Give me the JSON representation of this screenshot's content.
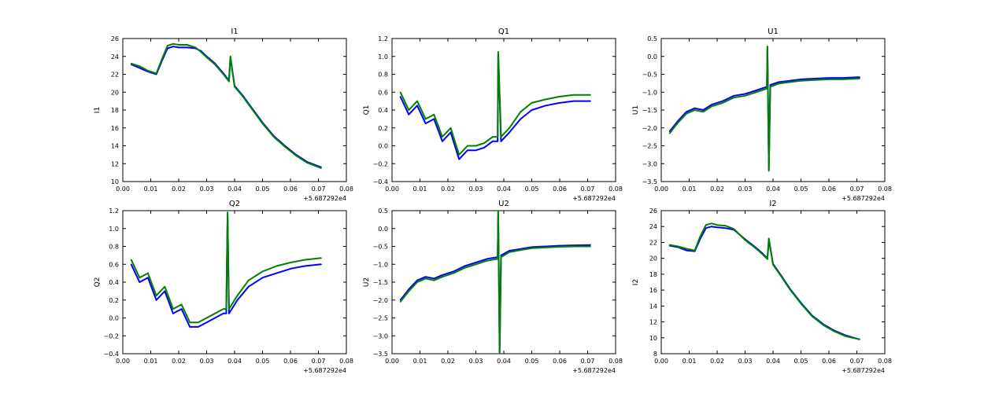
{
  "colors": {
    "series_blue": "#0000ff",
    "series_green": "#008000",
    "axis": "#000000",
    "background": "#ffffff"
  },
  "chart_data": [
    {
      "type": "line",
      "title": "I1",
      "xlabel": "",
      "ylabel": "I1",
      "xlim": [
        0.0,
        0.08
      ],
      "ylim": [
        10,
        26
      ],
      "xticks": [
        "0.00",
        "0.01",
        "0.02",
        "0.03",
        "0.04",
        "0.05",
        "0.06",
        "0.07",
        "0.08"
      ],
      "yticks": [
        "10",
        "12",
        "14",
        "16",
        "18",
        "20",
        "22",
        "24",
        "26"
      ],
      "offset_text": "+5.687292e4",
      "series": [
        {
          "name": "blue",
          "color": "#0000ff",
          "x": [
            0.003,
            0.006,
            0.009,
            0.012,
            0.014,
            0.016,
            0.018,
            0.02,
            0.023,
            0.026,
            0.028,
            0.03,
            0.033,
            0.036,
            0.038,
            0.0385,
            0.04,
            0.043,
            0.046,
            0.05,
            0.054,
            0.058,
            0.062,
            0.066,
            0.071
          ],
          "y": [
            23.1,
            22.7,
            22.3,
            22.0,
            23.5,
            24.9,
            25.1,
            25.0,
            25.0,
            24.9,
            24.6,
            24.0,
            23.2,
            22.1,
            21.3,
            23.9,
            20.7,
            19.6,
            18.3,
            16.6,
            15.1,
            14.0,
            13.0,
            12.2,
            11.6
          ]
        },
        {
          "name": "green",
          "color": "#008000",
          "x": [
            0.003,
            0.006,
            0.009,
            0.012,
            0.014,
            0.016,
            0.018,
            0.02,
            0.023,
            0.026,
            0.028,
            0.03,
            0.033,
            0.036,
            0.038,
            0.0385,
            0.04,
            0.043,
            0.046,
            0.05,
            0.054,
            0.058,
            0.062,
            0.066,
            0.071
          ],
          "y": [
            23.2,
            22.9,
            22.4,
            22.1,
            23.7,
            25.2,
            25.4,
            25.3,
            25.3,
            25.0,
            24.5,
            23.9,
            23.1,
            22.0,
            21.2,
            24.0,
            20.6,
            19.5,
            18.2,
            16.5,
            15.0,
            13.9,
            12.9,
            12.1,
            11.5
          ]
        }
      ]
    },
    {
      "type": "line",
      "title": "Q1",
      "xlabel": "",
      "ylabel": "Q1",
      "xlim": [
        0.0,
        0.08
      ],
      "ylim": [
        -0.4,
        1.2
      ],
      "xticks": [
        "0.00",
        "0.01",
        "0.02",
        "0.03",
        "0.04",
        "0.05",
        "0.06",
        "0.07",
        "0.08"
      ],
      "yticks": [
        "−0.4",
        "−0.2",
        "0.0",
        "0.2",
        "0.4",
        "0.6",
        "0.8",
        "1.0",
        "1.2"
      ],
      "offset_text": "+5.687292e4",
      "series": [
        {
          "name": "blue",
          "color": "#0000ff",
          "x": [
            0.003,
            0.006,
            0.009,
            0.012,
            0.015,
            0.018,
            0.021,
            0.024,
            0.027,
            0.03,
            0.033,
            0.036,
            0.0378,
            0.038,
            0.039,
            0.042,
            0.046,
            0.05,
            0.055,
            0.06,
            0.065,
            0.071
          ],
          "y": [
            0.55,
            0.35,
            0.45,
            0.25,
            0.3,
            0.05,
            0.15,
            -0.15,
            -0.05,
            -0.05,
            -0.02,
            0.05,
            0.05,
            1.02,
            0.05,
            0.15,
            0.3,
            0.4,
            0.45,
            0.48,
            0.5,
            0.5
          ]
        },
        {
          "name": "green",
          "color": "#008000",
          "x": [
            0.003,
            0.006,
            0.009,
            0.012,
            0.015,
            0.018,
            0.021,
            0.024,
            0.027,
            0.03,
            0.033,
            0.036,
            0.0378,
            0.038,
            0.039,
            0.042,
            0.046,
            0.05,
            0.055,
            0.06,
            0.065,
            0.071
          ],
          "y": [
            0.6,
            0.4,
            0.5,
            0.3,
            0.35,
            0.1,
            0.2,
            -0.1,
            0.0,
            0.0,
            0.03,
            0.1,
            0.1,
            1.05,
            0.1,
            0.2,
            0.38,
            0.48,
            0.52,
            0.55,
            0.57,
            0.57
          ]
        }
      ]
    },
    {
      "type": "line",
      "title": "U1",
      "xlabel": "",
      "ylabel": "U1",
      "xlim": [
        0.0,
        0.08
      ],
      "ylim": [
        -3.5,
        0.5
      ],
      "xticks": [
        "0.00",
        "0.01",
        "0.02",
        "0.03",
        "0.04",
        "0.05",
        "0.06",
        "0.07",
        "0.08"
      ],
      "yticks": [
        "−3.5",
        "−3.0",
        "−2.5",
        "−2.0",
        "−1.5",
        "−1.0",
        "−0.5",
        "0.0",
        "0.5"
      ],
      "offset_text": "+5.687292e4",
      "series": [
        {
          "name": "blue",
          "color": "#0000ff",
          "x": [
            0.003,
            0.006,
            0.009,
            0.012,
            0.015,
            0.018,
            0.022,
            0.026,
            0.03,
            0.034,
            0.0378,
            0.038,
            0.0385,
            0.039,
            0.042,
            0.046,
            0.05,
            0.055,
            0.06,
            0.065,
            0.071
          ],
          "y": [
            -2.1,
            -1.8,
            -1.55,
            -1.45,
            -1.5,
            -1.35,
            -1.25,
            -1.1,
            -1.05,
            -0.95,
            -0.85,
            0.25,
            -3.15,
            -0.8,
            -0.72,
            -0.68,
            -0.64,
            -0.62,
            -0.6,
            -0.6,
            -0.58
          ]
        },
        {
          "name": "green",
          "color": "#008000",
          "x": [
            0.003,
            0.006,
            0.009,
            0.012,
            0.015,
            0.018,
            0.022,
            0.026,
            0.03,
            0.034,
            0.0378,
            0.038,
            0.0385,
            0.039,
            0.042,
            0.046,
            0.05,
            0.055,
            0.06,
            0.065,
            0.071
          ],
          "y": [
            -2.15,
            -1.85,
            -1.6,
            -1.5,
            -1.55,
            -1.4,
            -1.3,
            -1.15,
            -1.1,
            -1.0,
            -0.9,
            0.28,
            -3.2,
            -0.85,
            -0.76,
            -0.72,
            -0.68,
            -0.66,
            -0.64,
            -0.64,
            -0.62
          ]
        }
      ]
    },
    {
      "type": "line",
      "title": "Q2",
      "xlabel": "",
      "ylabel": "Q2",
      "xlim": [
        0.0,
        0.08
      ],
      "ylim": [
        -0.4,
        1.2
      ],
      "xticks": [
        "0.00",
        "0.01",
        "0.02",
        "0.03",
        "0.04",
        "0.05",
        "0.06",
        "0.07",
        "0.08"
      ],
      "yticks": [
        "−0.4",
        "−0.2",
        "0.0",
        "0.2",
        "0.4",
        "0.6",
        "0.8",
        "1.0",
        "1.2"
      ],
      "offset_text": "+5.687292e4",
      "series": [
        {
          "name": "blue",
          "color": "#0000ff",
          "x": [
            0.003,
            0.006,
            0.009,
            0.012,
            0.015,
            0.018,
            0.021,
            0.024,
            0.027,
            0.03,
            0.033,
            0.036,
            0.037,
            0.0375,
            0.038,
            0.041,
            0.045,
            0.05,
            0.055,
            0.06,
            0.065,
            0.071
          ],
          "y": [
            0.6,
            0.4,
            0.45,
            0.2,
            0.3,
            0.05,
            0.1,
            -0.1,
            -0.1,
            -0.05,
            0.0,
            0.05,
            0.05,
            1.15,
            0.05,
            0.2,
            0.35,
            0.45,
            0.5,
            0.55,
            0.58,
            0.6
          ]
        },
        {
          "name": "green",
          "color": "#008000",
          "x": [
            0.003,
            0.006,
            0.009,
            0.012,
            0.015,
            0.018,
            0.021,
            0.024,
            0.027,
            0.03,
            0.033,
            0.036,
            0.037,
            0.0375,
            0.038,
            0.041,
            0.045,
            0.05,
            0.055,
            0.06,
            0.065,
            0.071
          ],
          "y": [
            0.65,
            0.45,
            0.5,
            0.25,
            0.35,
            0.1,
            0.15,
            -0.05,
            -0.05,
            0.0,
            0.05,
            0.1,
            0.1,
            1.18,
            0.1,
            0.25,
            0.42,
            0.52,
            0.58,
            0.62,
            0.65,
            0.67
          ]
        }
      ]
    },
    {
      "type": "line",
      "title": "U2",
      "xlabel": "",
      "ylabel": "U2",
      "xlim": [
        0.0,
        0.08
      ],
      "ylim": [
        -3.5,
        0.5
      ],
      "xticks": [
        "0.00",
        "0.01",
        "0.02",
        "0.03",
        "0.04",
        "0.05",
        "0.06",
        "0.07",
        "0.08"
      ],
      "yticks": [
        "−3.5",
        "−3.0",
        "−2.5",
        "−2.0",
        "−1.5",
        "−1.0",
        "−0.5",
        "0.0",
        "0.5"
      ],
      "offset_text": "+5.687292e4",
      "series": [
        {
          "name": "blue",
          "color": "#0000ff",
          "x": [
            0.003,
            0.006,
            0.009,
            0.012,
            0.015,
            0.018,
            0.022,
            0.026,
            0.03,
            0.034,
            0.0378,
            0.038,
            0.0385,
            0.039,
            0.042,
            0.046,
            0.05,
            0.055,
            0.06,
            0.065,
            0.071
          ],
          "y": [
            -2.0,
            -1.7,
            -1.45,
            -1.35,
            -1.4,
            -1.3,
            -1.2,
            -1.05,
            -0.95,
            -0.85,
            -0.8,
            0.45,
            -3.45,
            -0.75,
            -0.62,
            -0.57,
            -0.52,
            -0.5,
            -0.48,
            -0.47,
            -0.46
          ]
        },
        {
          "name": "green",
          "color": "#008000",
          "x": [
            0.003,
            0.006,
            0.009,
            0.012,
            0.015,
            0.018,
            0.022,
            0.026,
            0.03,
            0.034,
            0.0378,
            0.038,
            0.0385,
            0.039,
            0.042,
            0.046,
            0.05,
            0.055,
            0.06,
            0.065,
            0.071
          ],
          "y": [
            -2.05,
            -1.75,
            -1.5,
            -1.4,
            -1.45,
            -1.35,
            -1.25,
            -1.1,
            -1.0,
            -0.9,
            -0.85,
            0.48,
            -3.5,
            -0.8,
            -0.66,
            -0.6,
            -0.55,
            -0.53,
            -0.51,
            -0.5,
            -0.5
          ]
        }
      ]
    },
    {
      "type": "line",
      "title": "I2",
      "xlabel": "",
      "ylabel": "I2",
      "xlim": [
        0.0,
        0.08
      ],
      "ylim": [
        8,
        26
      ],
      "xticks": [
        "0.00",
        "0.01",
        "0.02",
        "0.03",
        "0.04",
        "0.05",
        "0.06",
        "0.07",
        "0.08"
      ],
      "yticks": [
        "8",
        "10",
        "12",
        "14",
        "16",
        "18",
        "20",
        "22",
        "24",
        "26"
      ],
      "offset_text": "+5.687292e4",
      "series": [
        {
          "name": "blue",
          "color": "#0000ff",
          "x": [
            0.003,
            0.006,
            0.009,
            0.012,
            0.014,
            0.016,
            0.018,
            0.02,
            0.023,
            0.026,
            0.028,
            0.03,
            0.033,
            0.036,
            0.038,
            0.0385,
            0.04,
            0.043,
            0.046,
            0.05,
            0.054,
            0.058,
            0.062,
            0.066,
            0.071
          ],
          "y": [
            21.6,
            21.4,
            21.0,
            20.9,
            22.5,
            23.8,
            24.0,
            23.9,
            23.8,
            23.6,
            23.0,
            22.4,
            21.6,
            20.7,
            20.0,
            22.3,
            19.3,
            17.8,
            16.2,
            14.4,
            12.8,
            11.7,
            10.9,
            10.3,
            9.8
          ]
        },
        {
          "name": "green",
          "color": "#008000",
          "x": [
            0.003,
            0.006,
            0.009,
            0.012,
            0.014,
            0.016,
            0.018,
            0.02,
            0.023,
            0.026,
            0.028,
            0.03,
            0.033,
            0.036,
            0.038,
            0.0385,
            0.04,
            0.043,
            0.046,
            0.05,
            0.054,
            0.058,
            0.062,
            0.066,
            0.071
          ],
          "y": [
            21.7,
            21.5,
            21.2,
            21.0,
            22.8,
            24.2,
            24.4,
            24.2,
            24.1,
            23.7,
            23.0,
            22.3,
            21.5,
            20.6,
            19.9,
            22.5,
            19.2,
            17.7,
            16.1,
            14.3,
            12.7,
            11.6,
            10.8,
            10.2,
            9.8
          ]
        }
      ]
    }
  ]
}
